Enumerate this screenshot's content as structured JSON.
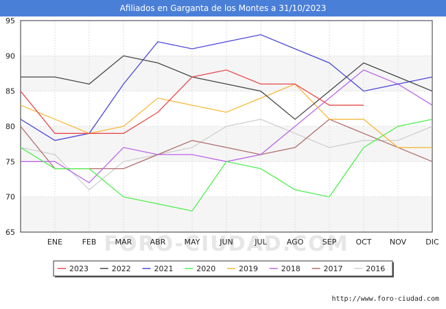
{
  "title": "Afiliados en Garganta de los Montes a 31/10/2023",
  "watermark": "FORO-CIUDAD.COM",
  "footer_url": "http://www.foro-ciudad.com",
  "chart_data": {
    "type": "line",
    "categories": [
      "",
      "ENE",
      "FEB",
      "MAR",
      "ABR",
      "MAY",
      "JUN",
      "JUL",
      "AGO",
      "SEP",
      "OCT",
      "NOV",
      "DIC"
    ],
    "ylim": [
      65,
      95
    ],
    "yticks": [
      65,
      70,
      75,
      80,
      85,
      90,
      95
    ],
    "grid": true,
    "legend_position": "bottom",
    "series": [
      {
        "name": "2023",
        "color": "#e8474a",
        "values": [
          85,
          79,
          79,
          79,
          82,
          87,
          88,
          86,
          86,
          83,
          83,
          null,
          null
        ]
      },
      {
        "name": "2022",
        "color": "#444444",
        "values": [
          87,
          87,
          86,
          90,
          89,
          87,
          86,
          85,
          81,
          85,
          89,
          87,
          85
        ]
      },
      {
        "name": "2021",
        "color": "#4a46d8",
        "values": [
          81,
          78,
          79,
          86,
          92,
          91,
          92,
          93,
          91,
          89,
          85,
          86,
          87
        ]
      },
      {
        "name": "2020",
        "color": "#4af04a",
        "values": [
          77,
          74,
          74,
          70,
          69,
          68,
          75,
          74,
          71,
          70,
          77,
          80,
          81
        ]
      },
      {
        "name": "2019",
        "color": "#f7b93a",
        "values": [
          83,
          81,
          79,
          80,
          84,
          83,
          82,
          84,
          86,
          81,
          81,
          77,
          77
        ]
      },
      {
        "name": "2018",
        "color": "#b965e6",
        "values": [
          75,
          75,
          72,
          77,
          76,
          76,
          75,
          76,
          80,
          84,
          88,
          86,
          83
        ]
      },
      {
        "name": "2017",
        "color": "#b06a6a",
        "values": [
          80,
          74,
          74,
          74,
          76,
          78,
          77,
          76,
          77,
          81,
          79,
          77,
          75
        ]
      },
      {
        "name": "2016",
        "color": "#cfcfcf",
        "values": [
          77,
          76,
          71,
          75,
          76,
          77,
          80,
          81,
          79,
          77,
          78,
          78,
          80
        ]
      }
    ]
  }
}
